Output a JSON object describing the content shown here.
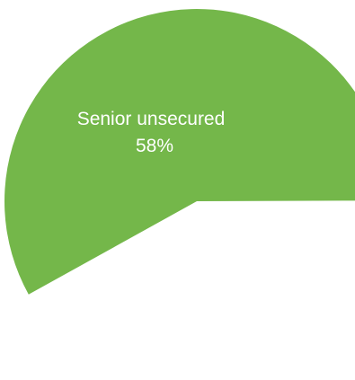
{
  "chart_data": {
    "type": "pie",
    "slices": [
      {
        "name": "Senior unsecured",
        "value": 58,
        "value_label": "58%",
        "color": "#74b74a"
      }
    ]
  }
}
